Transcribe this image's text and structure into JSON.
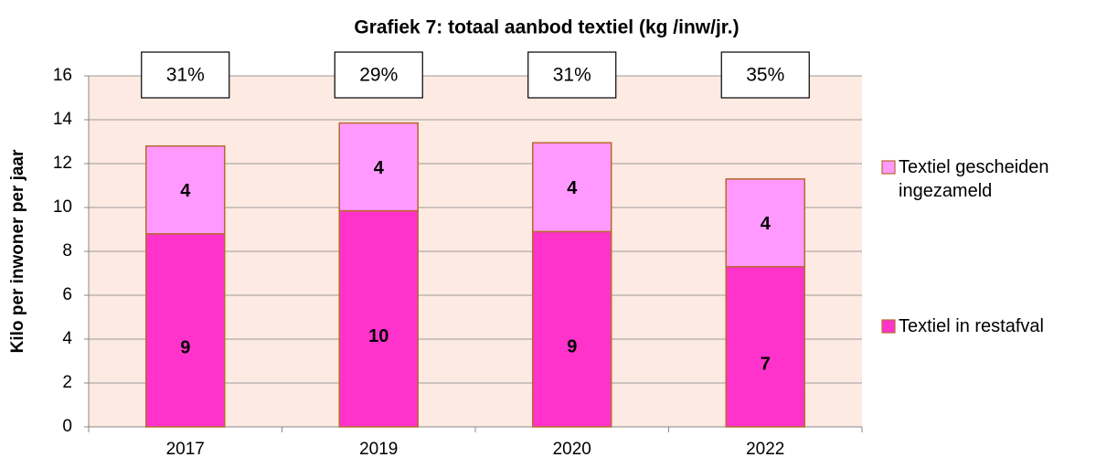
{
  "chart_data": {
    "type": "bar",
    "stacked": true,
    "title": "Grafiek  7: totaal aanbod textiel  (kg /inw/jr.)",
    "ylabel": "Kilo per inwoner per jaar",
    "categories": [
      "2017",
      "2019",
      "2020",
      "2022"
    ],
    "series": [
      {
        "name": "Textiel in restafval",
        "color": "#ff33cc",
        "values": [
          8.8,
          9.85,
          8.9,
          7.3
        ],
        "value_labels": [
          "9",
          "10",
          "9",
          "7"
        ]
      },
      {
        "name": "Textiel gescheiden ingezameld",
        "color": "#ff99ff",
        "values": [
          4.0,
          4.0,
          4.05,
          4.0
        ],
        "value_labels": [
          "4",
          "4",
          "4",
          "4"
        ]
      }
    ],
    "annotations": [
      "31%",
      "29%",
      "31%",
      "35%"
    ],
    "ylim": [
      0,
      16
    ],
    "yticks": [
      0,
      2,
      4,
      6,
      8,
      10,
      12,
      14,
      16
    ],
    "grid": true,
    "legend": "right"
  }
}
